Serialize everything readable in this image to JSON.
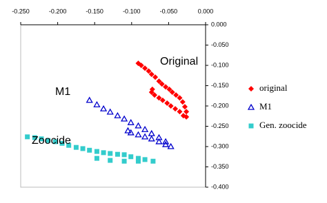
{
  "chart_data": {
    "type": "scatter",
    "xlim": [
      -0.25,
      0
    ],
    "ylim": [
      0,
      -0.4
    ],
    "xticks": [
      {
        "value": -0.25,
        "label": "-0.250"
      },
      {
        "value": -0.2,
        "label": "-0.200"
      },
      {
        "value": -0.15,
        "label": "-0.150"
      },
      {
        "value": -0.1,
        "label": "-0.100"
      },
      {
        "value": -0.05,
        "label": "-0.050"
      },
      {
        "value": 0,
        "label": "0.000"
      }
    ],
    "yticks": [
      {
        "value": 0,
        "label": "0.000"
      },
      {
        "value": -0.05,
        "label": "-0.050"
      },
      {
        "value": -0.1,
        "label": "-0.100"
      },
      {
        "value": -0.15,
        "label": "-0.150"
      },
      {
        "value": -0.2,
        "label": "-0.200"
      },
      {
        "value": -0.25,
        "label": "-0.250"
      },
      {
        "value": -0.3,
        "label": "-0.300"
      },
      {
        "value": -0.35,
        "label": "-0.350"
      },
      {
        "value": -0.4,
        "label": "-0.400"
      }
    ],
    "annotations": [
      "Original",
      "M1",
      "Zoocide"
    ],
    "series": [
      {
        "name": "original",
        "color": "#ff0000",
        "marker": "diamond",
        "x": [
          -0.091,
          -0.087,
          -0.082,
          -0.077,
          -0.073,
          -0.068,
          -0.063,
          -0.059,
          -0.054,
          -0.049,
          -0.045,
          -0.04,
          -0.035,
          -0.031,
          -0.028,
          -0.026,
          -0.026,
          -0.03,
          -0.035,
          -0.041,
          -0.047,
          -0.052,
          -0.058,
          -0.063,
          -0.069,
          -0.073,
          -0.072
        ],
        "values": [
          -0.095,
          -0.1,
          -0.107,
          -0.114,
          -0.122,
          -0.129,
          -0.139,
          -0.146,
          -0.153,
          -0.159,
          -0.166,
          -0.173,
          -0.18,
          -0.19,
          -0.202,
          -0.214,
          -0.227,
          -0.224,
          -0.214,
          -0.207,
          -0.2,
          -0.193,
          -0.186,
          -0.18,
          -0.173,
          -0.166,
          -0.159
        ]
      },
      {
        "name": "M1",
        "color": "#0000cc",
        "marker": "triangle",
        "x": [
          -0.157,
          -0.147,
          -0.138,
          -0.129,
          -0.119,
          -0.11,
          -0.101,
          -0.091,
          -0.082,
          -0.073,
          -0.063,
          -0.054,
          -0.047,
          -0.054,
          -0.063,
          -0.073,
          -0.082,
          -0.091,
          -0.101,
          -0.105
        ],
        "values": [
          -0.186,
          -0.197,
          -0.207,
          -0.215,
          -0.224,
          -0.232,
          -0.241,
          -0.249,
          -0.258,
          -0.268,
          -0.278,
          -0.288,
          -0.3,
          -0.295,
          -0.288,
          -0.281,
          -0.276,
          -0.271,
          -0.266,
          -0.261
        ]
      },
      {
        "name": "Gen. zoocide",
        "color": "#33cccc",
        "marker": "square",
        "x": [
          -0.241,
          -0.231,
          -0.222,
          -0.213,
          -0.203,
          -0.194,
          -0.185,
          -0.175,
          -0.166,
          -0.157,
          -0.147,
          -0.138,
          -0.129,
          -0.119,
          -0.11,
          -0.101,
          -0.091,
          -0.082,
          -0.071,
          -0.091,
          -0.11,
          -0.129,
          -0.147
        ],
        "values": [
          -0.276,
          -0.278,
          -0.281,
          -0.285,
          -0.288,
          -0.292,
          -0.297,
          -0.302,
          -0.305,
          -0.309,
          -0.312,
          -0.315,
          -0.317,
          -0.319,
          -0.32,
          -0.325,
          -0.329,
          -0.332,
          -0.336,
          -0.336,
          -0.336,
          -0.334,
          -0.329
        ]
      }
    ]
  }
}
